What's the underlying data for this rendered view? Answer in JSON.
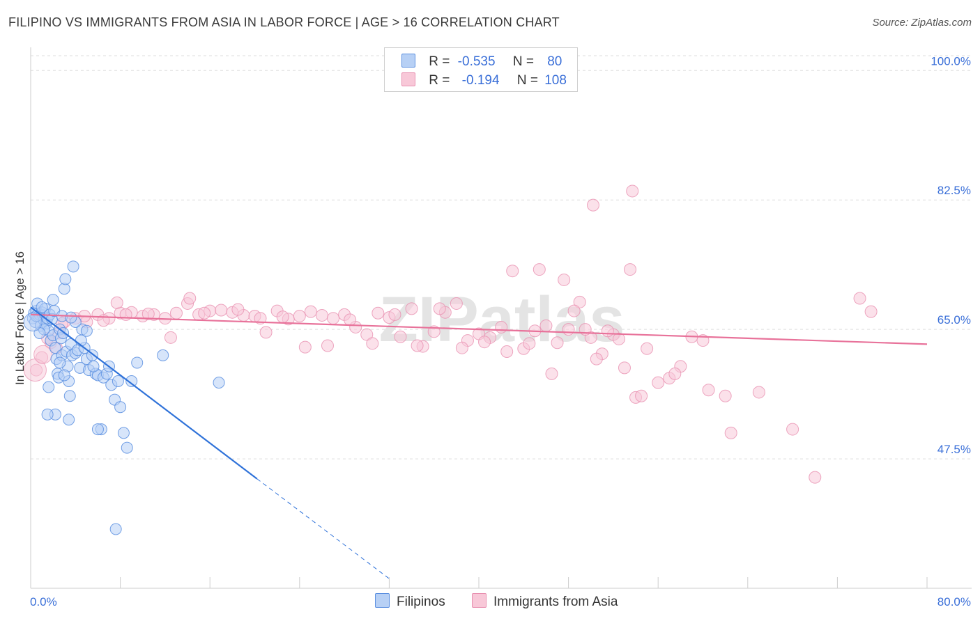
{
  "title": "FILIPINO VS IMMIGRANTS FROM ASIA IN LABOR FORCE | AGE > 16 CORRELATION CHART",
  "source": "Source: ZipAtlas.com",
  "watermark": "ZIPatlas",
  "legend": {
    "rows": [
      {
        "r_label": "R =",
        "r_value": "-0.535",
        "n_label": "N =",
        "n_value": "80"
      },
      {
        "r_label": "R =",
        "r_value": "-0.194",
        "n_label": "N =",
        "n_value": "108"
      }
    ]
  },
  "bottom_legend": [
    "Filipinos",
    "Immigrants from Asia"
  ],
  "colors": {
    "blue_fill": "#b7d0f5",
    "blue_stroke": "#5b8fe0",
    "blue_line": "#2f72d9",
    "pink_fill": "#f8c8d8",
    "pink_stroke": "#e890b0",
    "pink_line": "#e8729a",
    "tick_label": "#3a6fd8",
    "grid": "#dddddd"
  },
  "chart_data": {
    "type": "scatter",
    "title": "FILIPINO VS IMMIGRANTS FROM ASIA IN LABOR FORCE | AGE > 16 CORRELATION CHART",
    "xlabel": "",
    "ylabel": "In Labor Force | Age > 16",
    "xlim": [
      0,
      80
    ],
    "ylim": [
      30,
      102
    ],
    "x_tick_labels": [
      "0.0%",
      "80.0%"
    ],
    "y_ticks": [
      100,
      82.5,
      65,
      47.5
    ],
    "y_tick_labels": [
      "100.0%",
      "82.5%",
      "65.0%",
      "47.5%"
    ],
    "grid": true,
    "series": [
      {
        "name": "Filipinos",
        "r": -0.535,
        "n": 80,
        "trend": {
          "x0": 0,
          "y0": 68.0,
          "x1": 20.2,
          "y1": 44.8,
          "dash_to_x": 32,
          "dash_to_y": 31.3
        },
        "points": [
          [
            0.2,
            66.5
          ],
          [
            0.3,
            67.2
          ],
          [
            0.4,
            66.0
          ],
          [
            0.5,
            67.5
          ],
          [
            0.6,
            68.5
          ],
          [
            0.7,
            66.8
          ],
          [
            0.8,
            67.0
          ],
          [
            0.9,
            65.5
          ],
          [
            1.0,
            67.3
          ],
          [
            1.1,
            66.9
          ],
          [
            1.2,
            66.2
          ],
          [
            1.3,
            67.8
          ],
          [
            1.4,
            65.8
          ],
          [
            1.5,
            66.5
          ],
          [
            1.6,
            64.8
          ],
          [
            1.7,
            67.0
          ],
          [
            1.8,
            63.5
          ],
          [
            1.9,
            66.4
          ],
          [
            2.0,
            64.2
          ],
          [
            2.1,
            67.5
          ],
          [
            2.2,
            62.5
          ],
          [
            2.3,
            61.0
          ],
          [
            2.4,
            59.0
          ],
          [
            2.5,
            58.5
          ],
          [
            2.6,
            65.0
          ],
          [
            2.7,
            63.8
          ],
          [
            2.8,
            61.5
          ],
          [
            2.9,
            64.5
          ],
          [
            3.0,
            70.5
          ],
          [
            3.1,
            71.8
          ],
          [
            3.2,
            62.0
          ],
          [
            3.3,
            60.0
          ],
          [
            3.4,
            58.0
          ],
          [
            3.5,
            56.0
          ],
          [
            3.6,
            63.0
          ],
          [
            3.7,
            61.5
          ],
          [
            3.8,
            73.5
          ],
          [
            4.0,
            61.8
          ],
          [
            4.2,
            62.2
          ],
          [
            4.4,
            59.8
          ],
          [
            4.6,
            65.0
          ],
          [
            4.8,
            62.5
          ],
          [
            5.0,
            61.0
          ],
          [
            5.2,
            59.5
          ],
          [
            5.5,
            61.5
          ],
          [
            5.8,
            59.0
          ],
          [
            6.0,
            58.8
          ],
          [
            6.3,
            51.5
          ],
          [
            6.5,
            58.5
          ],
          [
            6.8,
            59.0
          ],
          [
            7.0,
            60.0
          ],
          [
            7.2,
            57.5
          ],
          [
            7.5,
            55.5
          ],
          [
            7.8,
            58.0
          ],
          [
            8.0,
            54.5
          ],
          [
            8.3,
            51.0
          ],
          [
            8.6,
            49.0
          ],
          [
            9.0,
            58.0
          ],
          [
            9.5,
            60.5
          ],
          [
            11.8,
            61.5
          ],
          [
            16.8,
            57.8
          ],
          [
            7.6,
            38.0
          ],
          [
            1.6,
            57.2
          ],
          [
            3.4,
            52.8
          ],
          [
            2.2,
            53.5
          ],
          [
            2.0,
            69.0
          ],
          [
            1.2,
            65.0
          ],
          [
            0.8,
            64.5
          ],
          [
            4.5,
            63.5
          ],
          [
            5.6,
            60.0
          ],
          [
            3.0,
            58.8
          ],
          [
            2.6,
            60.5
          ],
          [
            6.0,
            51.5
          ],
          [
            1.5,
            53.5
          ],
          [
            2.8,
            66.8
          ],
          [
            4.0,
            66.0
          ],
          [
            0.5,
            66.8
          ],
          [
            1.0,
            68.0
          ],
          [
            3.6,
            66.6
          ],
          [
            5.0,
            64.8
          ]
        ]
      },
      {
        "name": "Immigrants from Asia",
        "r": -0.194,
        "n": 108,
        "trend": {
          "x0": 0,
          "y0": 67.0,
          "x1": 80,
          "y1": 63.0
        },
        "points": [
          [
            0.5,
            59.5
          ],
          [
            1.0,
            61.2
          ],
          [
            1.8,
            63.2
          ],
          [
            2.5,
            64.5
          ],
          [
            3.0,
            66.0
          ],
          [
            4.0,
            66.5
          ],
          [
            5.0,
            66.0
          ],
          [
            6.0,
            67.0
          ],
          [
            7.0,
            66.5
          ],
          [
            8.0,
            67.2
          ],
          [
            9.0,
            67.3
          ],
          [
            10.0,
            66.8
          ],
          [
            11.0,
            67.0
          ],
          [
            12.0,
            66.5
          ],
          [
            13.0,
            67.2
          ],
          [
            14.0,
            68.5
          ],
          [
            15.0,
            67.0
          ],
          [
            16.0,
            67.5
          ],
          [
            17.0,
            67.6
          ],
          [
            18.0,
            67.3
          ],
          [
            19.0,
            66.9
          ],
          [
            20.0,
            66.8
          ],
          [
            21.0,
            64.6
          ],
          [
            22.0,
            67.5
          ],
          [
            23.0,
            66.4
          ],
          [
            24.0,
            66.8
          ],
          [
            25.0,
            67.4
          ],
          [
            26.0,
            66.9
          ],
          [
            27.0,
            66.5
          ],
          [
            28.0,
            67.0
          ],
          [
            29.0,
            65.3
          ],
          [
            30.0,
            64.3
          ],
          [
            31.0,
            67.2
          ],
          [
            32.0,
            66.6
          ],
          [
            33.0,
            64.0
          ],
          [
            34.0,
            67.8
          ],
          [
            35.0,
            62.7
          ],
          [
            36.0,
            64.7
          ],
          [
            37.0,
            67.3
          ],
          [
            38.0,
            68.5
          ],
          [
            39.0,
            63.5
          ],
          [
            40.0,
            64.4
          ],
          [
            41.0,
            63.9
          ],
          [
            42.0,
            65.3
          ],
          [
            43.0,
            72.9
          ],
          [
            44.0,
            62.4
          ],
          [
            45.0,
            64.8
          ],
          [
            46.0,
            65.5
          ],
          [
            47.0,
            63.2
          ],
          [
            48.0,
            65.0
          ],
          [
            49.0,
            68.7
          ],
          [
            50.0,
            63.9
          ],
          [
            51.0,
            61.7
          ],
          [
            52.0,
            64.3
          ],
          [
            53.0,
            59.8
          ],
          [
            54.0,
            55.8
          ],
          [
            55.0,
            62.4
          ],
          [
            56.0,
            57.8
          ],
          [
            57.0,
            58.4
          ],
          [
            58.0,
            60.0
          ],
          [
            59.0,
            64.0
          ],
          [
            60.0,
            63.5
          ],
          [
            62.0,
            56.0
          ],
          [
            65.0,
            56.5
          ],
          [
            68.0,
            51.5
          ],
          [
            70.0,
            45.0
          ],
          [
            74.0,
            69.2
          ],
          [
            75.0,
            67.4
          ],
          [
            50.2,
            81.8
          ],
          [
            53.7,
            83.7
          ],
          [
            45.4,
            73.1
          ],
          [
            53.5,
            73.1
          ],
          [
            47.6,
            71.7
          ],
          [
            14.2,
            69.2
          ],
          [
            7.7,
            68.6
          ],
          [
            2.3,
            62.5
          ],
          [
            4.8,
            66.8
          ],
          [
            6.5,
            66.2
          ],
          [
            8.5,
            67.0
          ],
          [
            10.5,
            67.1
          ],
          [
            12.5,
            63.9
          ],
          [
            15.5,
            67.2
          ],
          [
            18.5,
            67.7
          ],
          [
            20.5,
            66.5
          ],
          [
            22.5,
            66.7
          ],
          [
            24.5,
            62.6
          ],
          [
            26.5,
            62.8
          ],
          [
            28.5,
            66.3
          ],
          [
            30.5,
            63.1
          ],
          [
            32.5,
            67.0
          ],
          [
            34.5,
            62.8
          ],
          [
            36.5,
            67.8
          ],
          [
            38.5,
            62.5
          ],
          [
            40.5,
            63.3
          ],
          [
            42.5,
            62.0
          ],
          [
            44.5,
            63.1
          ],
          [
            46.5,
            59.0
          ],
          [
            48.5,
            67.5
          ],
          [
            49.5,
            65.0
          ],
          [
            50.5,
            61.0
          ],
          [
            51.5,
            64.8
          ],
          [
            52.5,
            63.7
          ],
          [
            54.5,
            56.0
          ],
          [
            57.5,
            59.0
          ],
          [
            60.5,
            56.8
          ],
          [
            62.5,
            51.0
          ],
          [
            2.8,
            65.8
          ],
          [
            1.5,
            63.8
          ]
        ]
      }
    ]
  }
}
